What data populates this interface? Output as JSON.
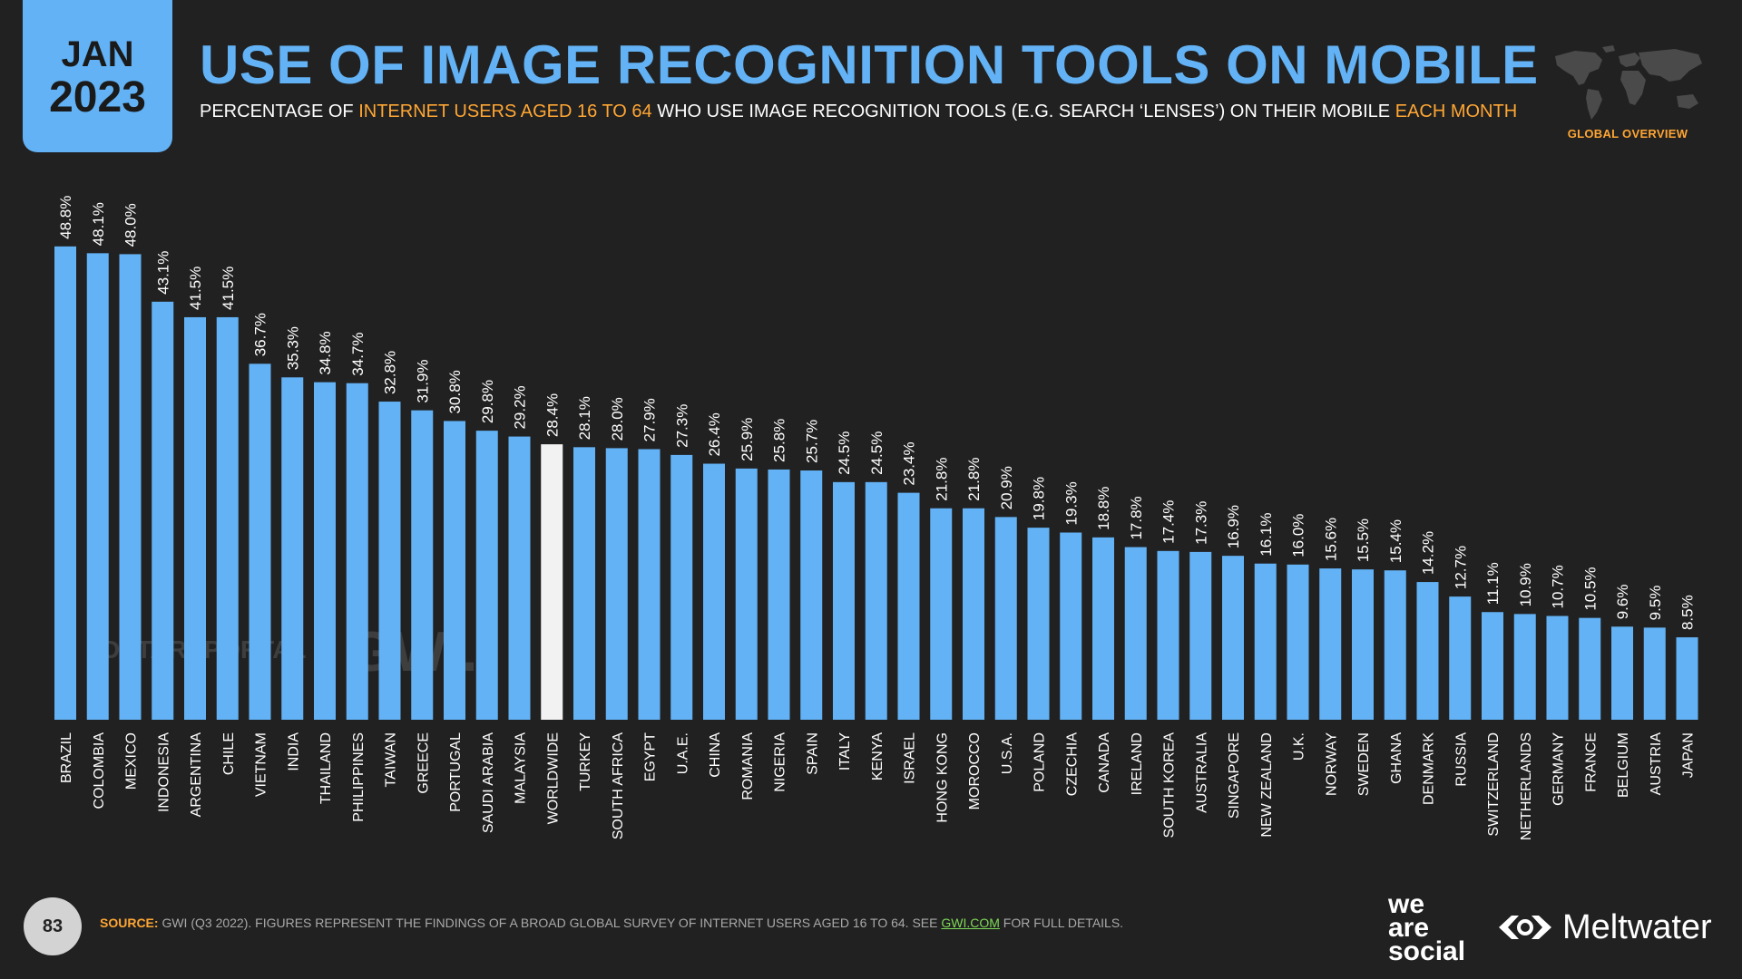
{
  "badge": {
    "month": "JAN",
    "year": "2023"
  },
  "header": {
    "title": "USE OF IMAGE RECOGNITION TOOLS ON MOBILE",
    "subtitle_part1": "PERCENTAGE OF ",
    "subtitle_highlight1": "INTERNET USERS AGED 16 TO 64",
    "subtitle_part2": " WHO USE IMAGE RECOGNITION TOOLS (E.G. SEARCH ‘LENSES’) ON THEIR MOBILE ",
    "subtitle_highlight2": "EACH MONTH",
    "overview_label": "GLOBAL OVERVIEW"
  },
  "watermarks": {
    "datareportal": "DATAREPORTAL",
    "gwi": "GWI."
  },
  "footer": {
    "page_number": "83",
    "source_label": "SOURCE:",
    "source_text": " GWI (Q3 2022). FIGURES REPRESENT THE FINDINGS OF A BROAD GLOBAL SURVEY OF INTERNET USERS AGED 16 TO 64. SEE ",
    "source_link": "GWI.COM",
    "source_tail": " FOR FULL DETAILS.",
    "brand_we": "we",
    "brand_are": "are",
    "brand_social": "social",
    "brand_meltwater": "Meltwater"
  },
  "colors": {
    "background": "#212121",
    "bar": "#62b2f5",
    "highlight_bar": "#f2f2f2",
    "accent": "#ffa633",
    "link": "#7ed957"
  },
  "icons": {
    "globe": "world-map-icon",
    "meltwater": "meltwater-logo-icon"
  },
  "chart_data": {
    "type": "bar",
    "title": "USE OF IMAGE RECOGNITION TOOLS ON MOBILE",
    "xlabel": "",
    "ylabel": "",
    "value_suffix": "%",
    "highlight": "WORLDWIDE",
    "ylim": [
      0,
      50
    ],
    "grid": false,
    "categories": [
      "BRAZIL",
      "COLOMBIA",
      "MEXICO",
      "INDONESIA",
      "ARGENTINA",
      "CHILE",
      "VIETNAM",
      "INDIA",
      "THAILAND",
      "PHILIPPINES",
      "TAIWAN",
      "GREECE",
      "PORTUGAL",
      "SAUDI ARABIA",
      "MALAYSIA",
      "WORLDWIDE",
      "TURKEY",
      "SOUTH AFRICA",
      "EGYPT",
      "U.A.E.",
      "CHINA",
      "ROMANIA",
      "NIGERIA",
      "SPAIN",
      "ITALY",
      "KENYA",
      "ISRAEL",
      "HONG KONG",
      "MOROCCO",
      "U.S.A.",
      "POLAND",
      "CZECHIA",
      "CANADA",
      "IRELAND",
      "SOUTH KOREA",
      "AUSTRALIA",
      "SINGAPORE",
      "NEW ZEALAND",
      "U.K.",
      "NORWAY",
      "SWEDEN",
      "GHANA",
      "DENMARK",
      "RUSSIA",
      "SWITZERLAND",
      "NETHERLANDS",
      "GERMANY",
      "FRANCE",
      "BELGIUM",
      "AUSTRIA",
      "JAPAN"
    ],
    "values": [
      48.8,
      48.1,
      48.0,
      43.1,
      41.5,
      41.5,
      36.7,
      35.3,
      34.8,
      34.7,
      32.8,
      31.9,
      30.8,
      29.8,
      29.2,
      28.4,
      28.1,
      28.0,
      27.9,
      27.3,
      26.4,
      25.9,
      25.8,
      25.7,
      24.5,
      24.5,
      23.4,
      21.8,
      21.8,
      20.9,
      19.8,
      19.3,
      18.8,
      17.8,
      17.4,
      17.3,
      16.9,
      16.1,
      16.0,
      15.6,
      15.5,
      15.4,
      14.2,
      12.7,
      11.1,
      10.9,
      10.7,
      10.5,
      9.6,
      9.5,
      8.5
    ]
  }
}
